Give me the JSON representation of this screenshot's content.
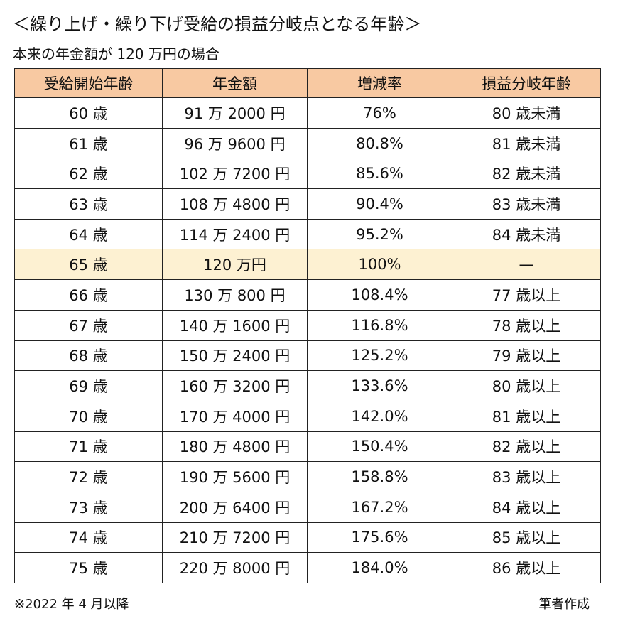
{
  "header": {
    "title": "＜繰り上げ・繰り下げ受給の損益分岐点となる年齢＞",
    "subtitle": "本来の年金額が 120 万円の場合"
  },
  "table": {
    "columns": [
      "受給開始年齢",
      "年金額",
      "増減率",
      "損益分岐年齢"
    ],
    "rows": [
      [
        "60 歳",
        "91 万 2000 円",
        "76%",
        "80 歳未満"
      ],
      [
        "61 歳",
        "96 万 9600 円",
        "80.8%",
        "81 歳未満"
      ],
      [
        "62 歳",
        "102 万 7200 円",
        "85.6%",
        "82 歳未満"
      ],
      [
        "63 歳",
        "108 万 4800 円",
        "90.4%",
        "83 歳未満"
      ],
      [
        "64 歳",
        "114 万 2400 円",
        "95.2%",
        "84 歳未満"
      ],
      [
        "65 歳",
        "120 万円",
        "100%",
        "—"
      ],
      [
        "66 歳",
        "130 万 800 円",
        "108.4%",
        "77 歳以上"
      ],
      [
        "67 歳",
        "140 万 1600 円",
        "116.8%",
        "78 歳以上"
      ],
      [
        "68 歳",
        "150 万 2400 円",
        "125.2%",
        "79 歳以上"
      ],
      [
        "69 歳",
        "160 万 3200 円",
        "133.6%",
        "80 歳以上"
      ],
      [
        "70 歳",
        "170 万 4000 円",
        "142.0%",
        "81 歳以上"
      ],
      [
        "71 歳",
        "180 万 4800 円",
        "150.4%",
        "82 歳以上"
      ],
      [
        "72 歳",
        "190 万 5600 円",
        "158.8%",
        "83 歳以上"
      ],
      [
        "73 歳",
        "200 万 6400 円",
        "167.2%",
        "84 歳以上"
      ],
      [
        "74 歳",
        "210 万 7200 円",
        "175.6%",
        "85 歳以上"
      ],
      [
        "75 歳",
        "220 万 8000 円",
        "184.0%",
        "86 歳以上"
      ]
    ]
  },
  "footer": {
    "note": "※2022 年 4 月以降",
    "credit": "筆者作成"
  }
}
